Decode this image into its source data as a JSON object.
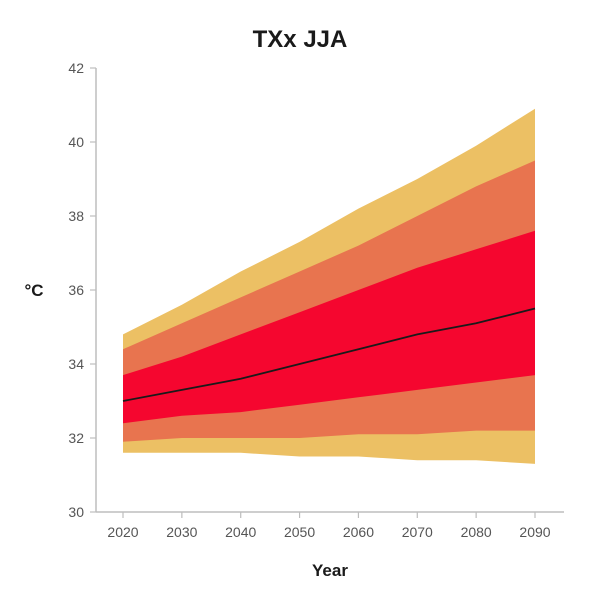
{
  "chart_data": {
    "type": "area",
    "title": "TXx JJA",
    "xlabel": "Year",
    "ylabel": "°C",
    "xlim": [
      2015,
      2095
    ],
    "ylim": [
      30,
      42
    ],
    "x_ticks": [
      2020,
      2030,
      2040,
      2050,
      2060,
      2070,
      2080,
      2090
    ],
    "y_ticks": [
      30,
      32,
      34,
      36,
      38,
      40,
      42
    ],
    "grid": false,
    "x": [
      2020,
      2030,
      2040,
      2050,
      2060,
      2070,
      2080,
      2090
    ],
    "bands": [
      {
        "color": "#ecc064",
        "upper": [
          34.8,
          35.6,
          36.5,
          37.3,
          38.2,
          39.0,
          39.9,
          40.9
        ],
        "lower": [
          31.6,
          31.6,
          31.6,
          31.5,
          31.5,
          31.4,
          31.4,
          31.3
        ]
      },
      {
        "color": "#e8744f",
        "upper": [
          34.4,
          35.1,
          35.8,
          36.5,
          37.2,
          38.0,
          38.8,
          39.5
        ],
        "lower": [
          31.9,
          32.0,
          32.0,
          32.0,
          32.1,
          32.1,
          32.2,
          32.2
        ]
      },
      {
        "color": "#f5062f",
        "upper": [
          33.7,
          34.2,
          34.8,
          35.4,
          36.0,
          36.6,
          37.1,
          37.6
        ],
        "lower": [
          32.4,
          32.6,
          32.7,
          32.9,
          33.1,
          33.3,
          33.5,
          33.7
        ]
      }
    ],
    "series": [
      {
        "color": "#1a1a1a",
        "values": [
          33.0,
          33.3,
          33.6,
          34.0,
          34.4,
          34.8,
          35.1,
          35.5
        ]
      }
    ]
  }
}
